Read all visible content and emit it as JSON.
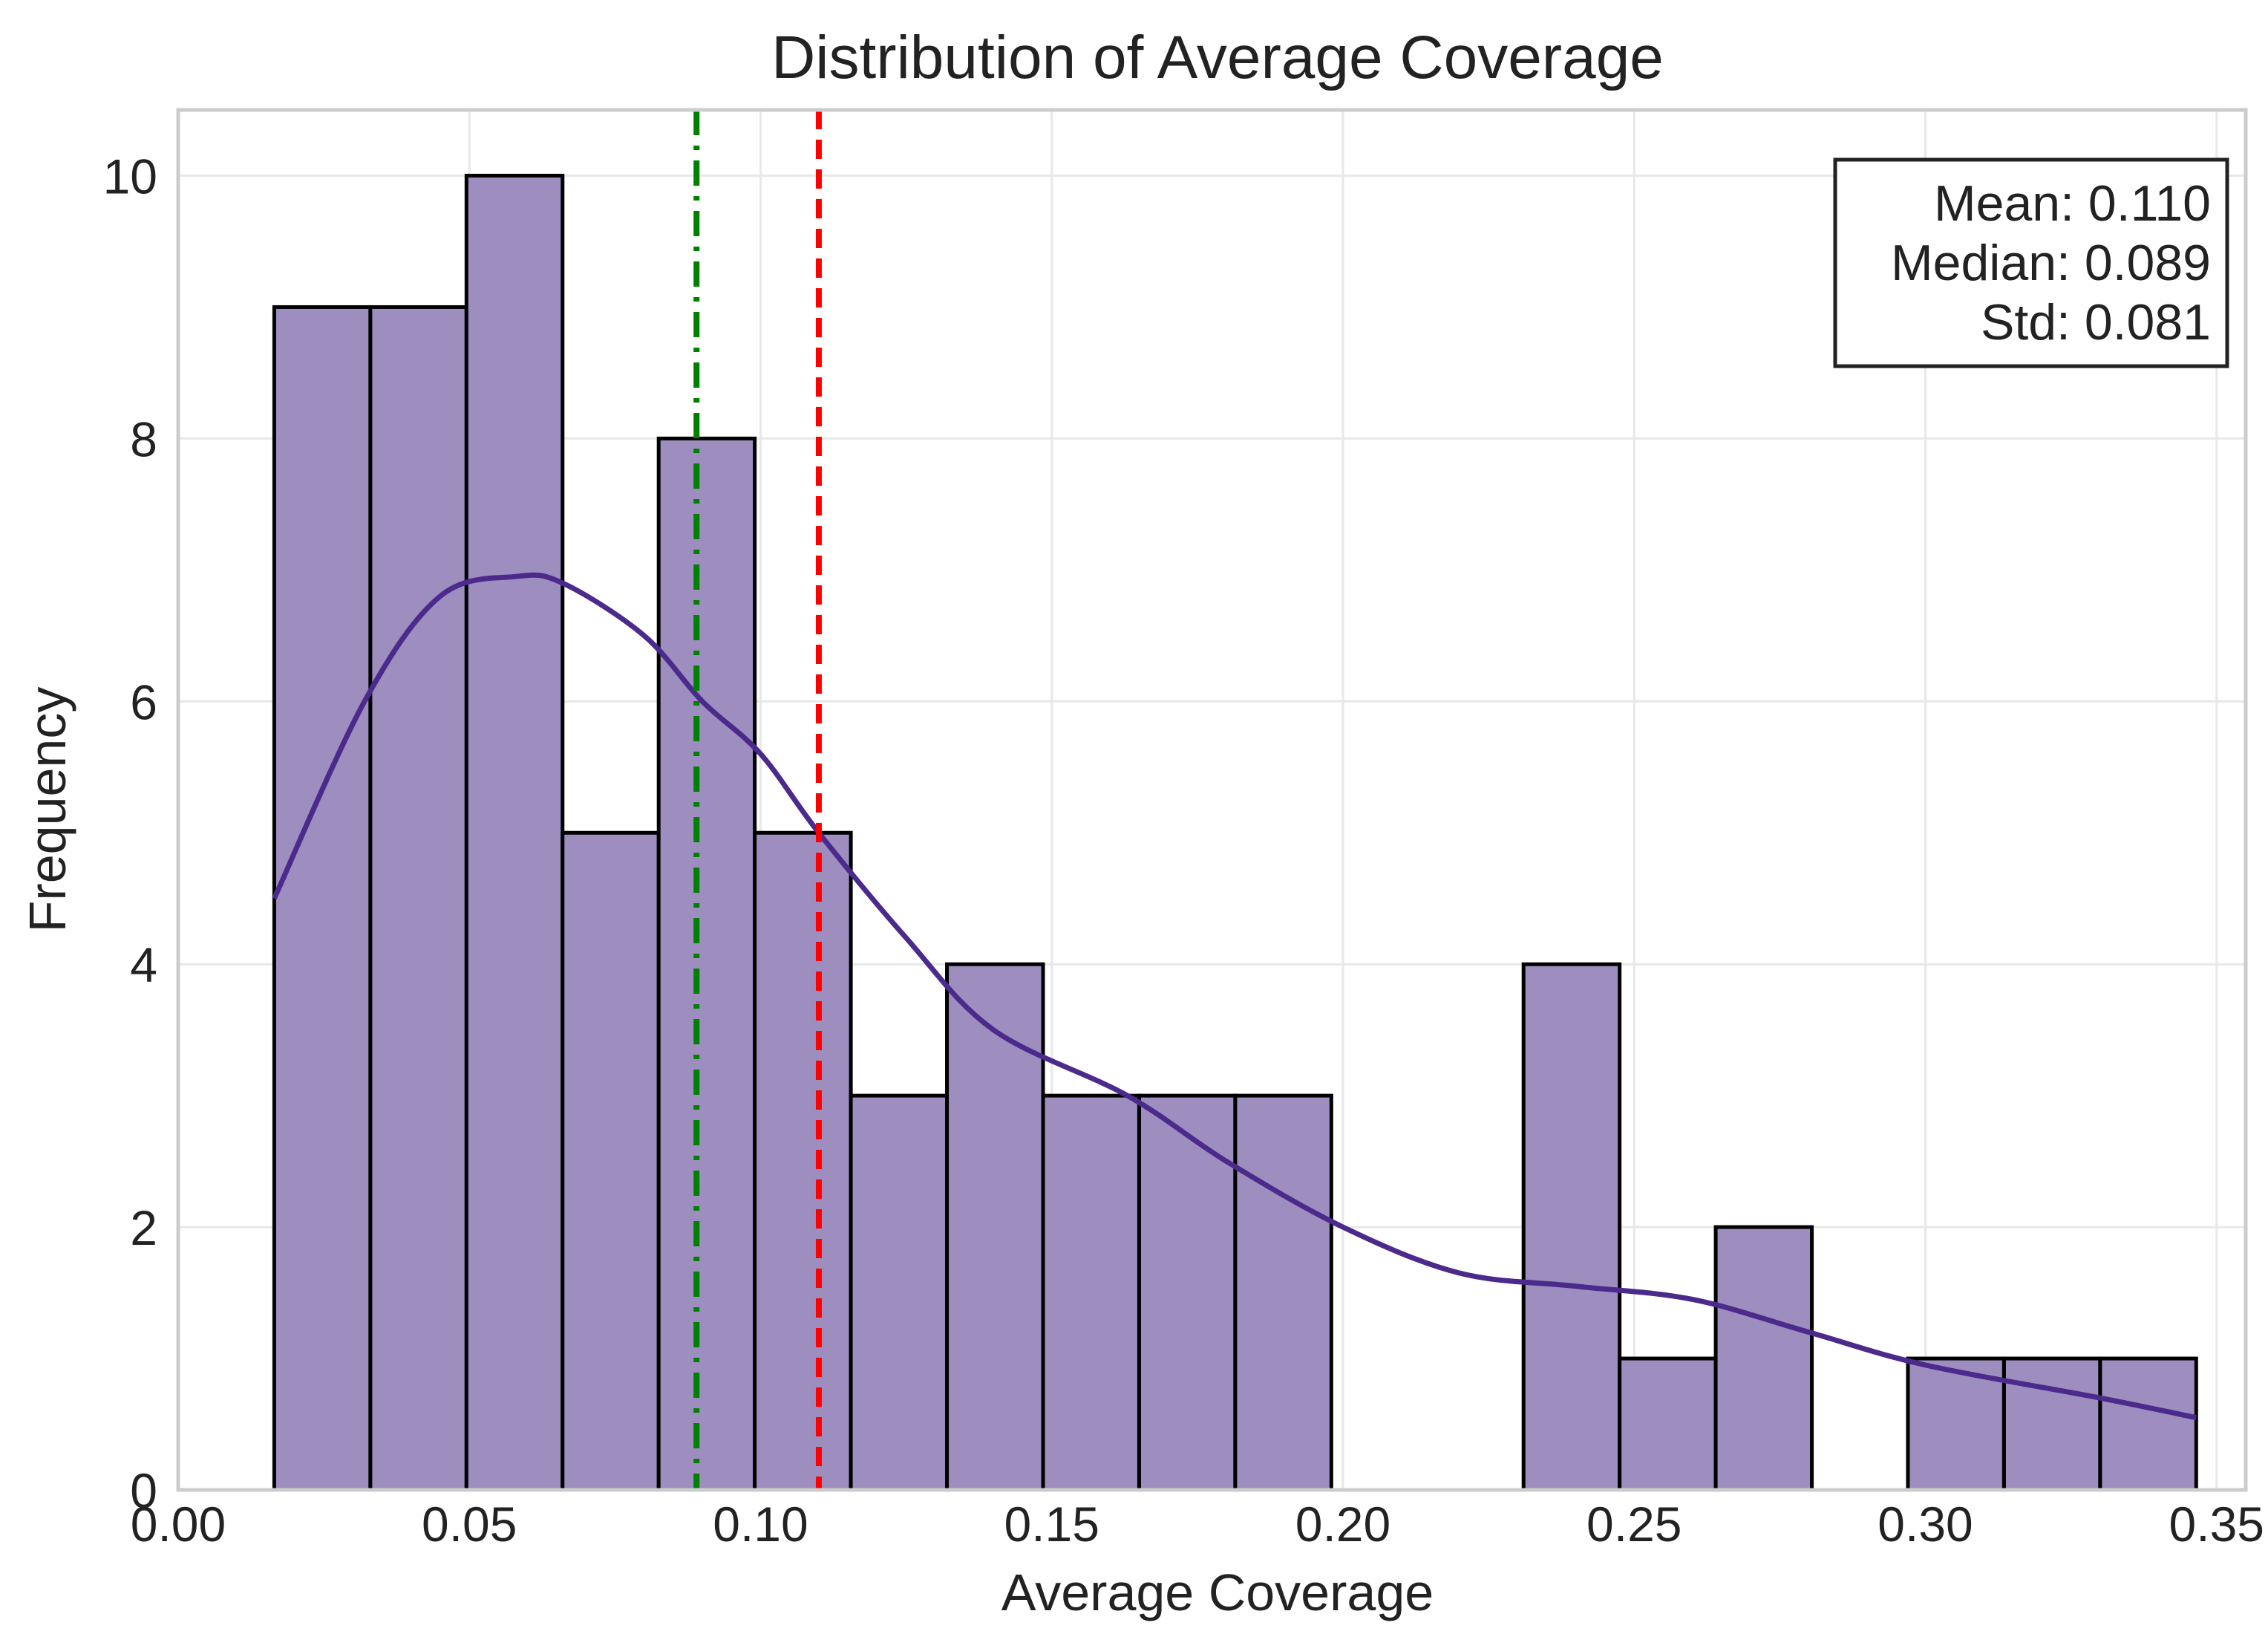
{
  "chart_data": {
    "type": "bar",
    "title": "Distribution of Average Coverage",
    "xlabel": "Average Coverage",
    "ylabel": "Frequency",
    "xlim": [
      0.0,
      0.355
    ],
    "ylim": [
      0,
      10.5
    ],
    "xticks": [
      0.0,
      0.05,
      0.1,
      0.15,
      0.2,
      0.25,
      0.3,
      0.35
    ],
    "xtick_labels": [
      "0.00",
      "0.05",
      "0.10",
      "0.15",
      "0.20",
      "0.25",
      "0.30",
      "0.35"
    ],
    "yticks": [
      0,
      2,
      4,
      6,
      8,
      10
    ],
    "ytick_labels": [
      "0",
      "2",
      "4",
      "6",
      "8",
      "10"
    ],
    "grid": true,
    "bins": {
      "start": 0.0165,
      "width": 0.0165,
      "counts": [
        9,
        9,
        10,
        5,
        8,
        5,
        3,
        4,
        3,
        3,
        3,
        0,
        0,
        4,
        1,
        2,
        0,
        1,
        1,
        1
      ]
    },
    "kde": {
      "x": [
        0.0165,
        0.032,
        0.045,
        0.058,
        0.066,
        0.08,
        0.09,
        0.1,
        0.11,
        0.125,
        0.14,
        0.163,
        0.18,
        0.2,
        0.22,
        0.24,
        0.26,
        0.28,
        0.3,
        0.33,
        0.3465
      ],
      "y": [
        4.5,
        6.0,
        6.8,
        6.95,
        6.9,
        6.5,
        6.0,
        5.6,
        5.0,
        4.2,
        3.5,
        3.0,
        2.5,
        2.0,
        1.65,
        1.55,
        1.45,
        1.2,
        0.95,
        0.7,
        0.55
      ]
    },
    "series_color": "#9d8ebf",
    "kde_color": "#4b2a8c",
    "vlines": [
      {
        "name": "Median",
        "x": 0.089,
        "style": "dashdot",
        "color": "#008000"
      },
      {
        "name": "Mean",
        "x": 0.11,
        "style": "dashed",
        "color": "#ff0000"
      }
    ],
    "annotations": {
      "placement": "top-right",
      "lines": [
        "Mean: 0.110",
        "Median: 0.089",
        "Std: 0.081"
      ]
    }
  }
}
